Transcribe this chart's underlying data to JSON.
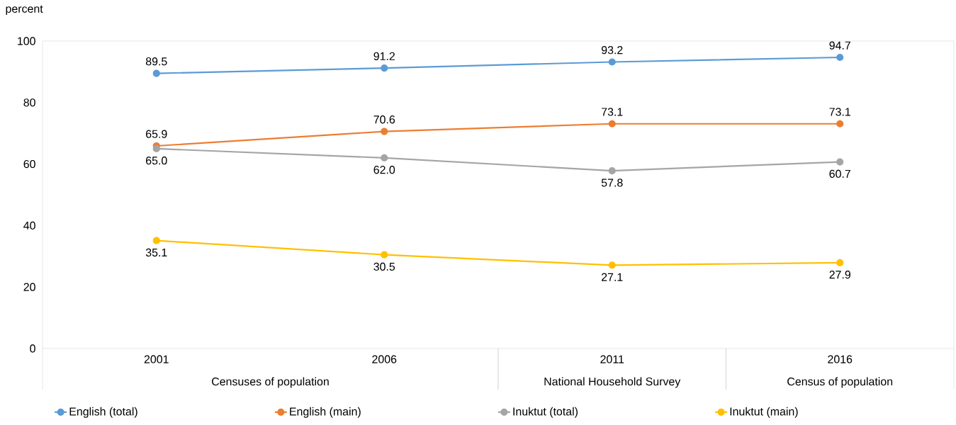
{
  "chart_data": {
    "type": "line",
    "ylabel": "percent",
    "categories": [
      "2001",
      "2006",
      "2011",
      "2016"
    ],
    "annotations": [
      "Censuses of population",
      "National Household Survey",
      "Census of population"
    ],
    "series": [
      {
        "name": "English (total)",
        "color": "#5b9bd5",
        "values": [
          89.5,
          91.2,
          93.2,
          94.7
        ],
        "value_labels": [
          "89.5",
          "91.2",
          "93.2",
          "94.7"
        ]
      },
      {
        "name": "English (main)",
        "color": "#ed7d31",
        "values": [
          65.9,
          70.6,
          73.1,
          73.1
        ],
        "value_labels": [
          "65.9",
          "70.6",
          "73.1",
          "73.1"
        ]
      },
      {
        "name": "Inuktut (total)",
        "color": "#a5a5a5",
        "values": [
          65.0,
          62.0,
          57.8,
          60.7
        ],
        "value_labels": [
          "65.0",
          "62.0",
          "57.8",
          "60.7"
        ]
      },
      {
        "name": "Inuktut (main)",
        "color": "#ffc000",
        "values": [
          35.1,
          30.5,
          27.1,
          27.9
        ],
        "value_labels": [
          "35.1",
          "30.5",
          "27.1",
          "27.9"
        ]
      }
    ],
    "ylim": [
      0,
      100
    ],
    "yticks": [
      0,
      20,
      40,
      60,
      80,
      100
    ],
    "marker": "circle",
    "legend": "bottom",
    "grid": false
  }
}
